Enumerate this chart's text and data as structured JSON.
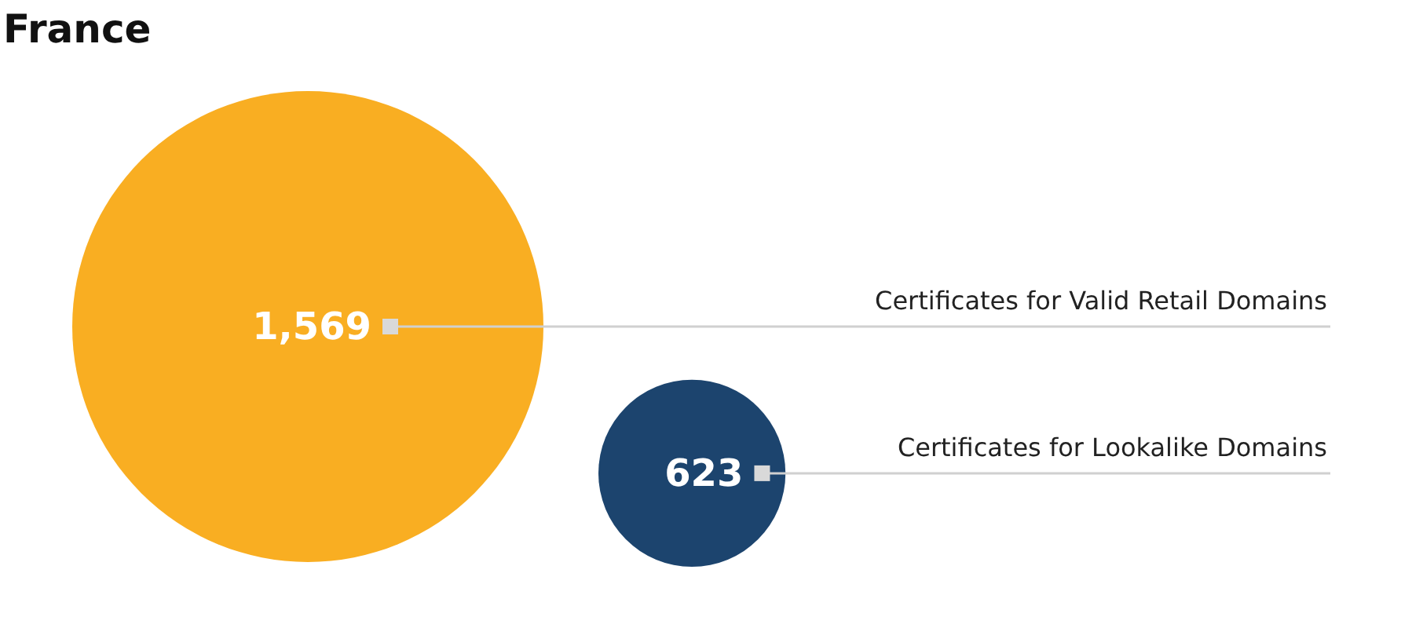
{
  "chart_data": {
    "type": "other",
    "title": "France",
    "categories": [
      "Certificates for Valid Retail Domains",
      "Certificates for Lookalike Domains"
    ],
    "values": [
      1569,
      623
    ],
    "value_labels": [
      "1,569",
      "623"
    ],
    "colors": [
      "#f9ae22",
      "#1c446e"
    ],
    "data_labels": true
  }
}
